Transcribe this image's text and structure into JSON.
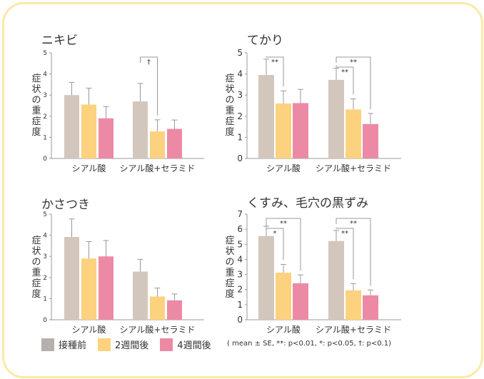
{
  "colors": {
    "before": "#d3c7bd",
    "week2": "#fcd27f",
    "week4": "#ec8aa6",
    "frame": "#fbe9a6"
  },
  "legend": [
    {
      "label": "接種前",
      "color": "#b5b0ad"
    },
    {
      "label": "2週間後",
      "color": "#fcd27f"
    },
    {
      "label": "4週間後",
      "color": "#ec8aa6"
    }
  ],
  "note": "( mean ± SE, **: p<0.01, *: p<0.05, †: p<0.1)",
  "chart_data": [
    {
      "type": "bar",
      "title": "ニキビ",
      "ylabel": "症状の重症度",
      "ylim": [
        0,
        5
      ],
      "yticks": [
        0,
        1,
        2,
        3,
        4,
        5
      ],
      "categories": [
        "シアル酸",
        "シアル酸+セラミド"
      ],
      "series": [
        {
          "values": [
            3.0,
            2.7
          ],
          "errors": [
            0.6,
            0.85
          ]
        },
        {
          "values": [
            2.55,
            1.28
          ],
          "errors": [
            0.78,
            0.55
          ]
        },
        {
          "values": [
            1.9,
            1.4
          ],
          "errors": [
            0.55,
            0.42
          ]
        }
      ],
      "annotations": [
        {
          "group": 1,
          "from": 0,
          "to": 1,
          "label": "†"
        }
      ]
    },
    {
      "type": "bar",
      "title": "てかり",
      "ylabel": "症状の重症度",
      "ylim": [
        0,
        5
      ],
      "yticks": [
        0,
        1,
        2,
        3,
        4,
        5
      ],
      "categories": [
        "シアル酸",
        "シアル酸+セラミド"
      ],
      "series": [
        {
          "values": [
            3.95,
            3.72
          ],
          "errors": [
            0.75,
            0.55
          ]
        },
        {
          "values": [
            2.6,
            2.32
          ],
          "errors": [
            0.6,
            0.5
          ]
        },
        {
          "values": [
            2.62,
            1.63
          ],
          "errors": [
            0.65,
            0.5
          ]
        }
      ],
      "annotations": [
        {
          "group": 0,
          "from": 0,
          "to": 1,
          "label": "**"
        },
        {
          "group": 1,
          "from": 0,
          "to": 1,
          "label": "**"
        },
        {
          "group": 1,
          "from": 0,
          "to": 2,
          "label": "**"
        }
      ]
    },
    {
      "type": "bar",
      "title": "かさつき",
      "ylabel": "症状の重症度",
      "ylim": [
        0,
        5
      ],
      "yticks": [
        0,
        1,
        2,
        3,
        4,
        5
      ],
      "categories": [
        "シアル酸",
        "シアル酸+セラミド"
      ],
      "series": [
        {
          "values": [
            3.92,
            2.28
          ],
          "errors": [
            0.85,
            0.58
          ]
        },
        {
          "values": [
            2.9,
            1.1
          ],
          "errors": [
            0.8,
            0.4
          ]
        },
        {
          "values": [
            3.0,
            0.92
          ],
          "errors": [
            0.75,
            0.3
          ]
        }
      ],
      "annotations": []
    },
    {
      "type": "bar",
      "title": "くすみ、毛穴の黒ずみ",
      "ylabel": "症状の重症度",
      "ylim": [
        0,
        7
      ],
      "yticks": [
        0,
        1,
        2,
        3,
        4,
        5,
        6,
        7
      ],
      "categories": [
        "シアル酸",
        "シアル酸+セラミド"
      ],
      "series": [
        {
          "values": [
            5.55,
            5.22
          ],
          "errors": [
            0.65,
            0.7
          ]
        },
        {
          "values": [
            3.12,
            1.95
          ],
          "errors": [
            0.55,
            0.45
          ]
        },
        {
          "values": [
            2.42,
            1.62
          ],
          "errors": [
            0.55,
            0.35
          ]
        }
      ],
      "annotations": [
        {
          "group": 0,
          "from": 0,
          "to": 1,
          "label": "*"
        },
        {
          "group": 0,
          "from": 0,
          "to": 2,
          "label": "**"
        },
        {
          "group": 1,
          "from": 0,
          "to": 1,
          "label": "**"
        },
        {
          "group": 1,
          "from": 0,
          "to": 2,
          "label": "**"
        }
      ]
    }
  ]
}
